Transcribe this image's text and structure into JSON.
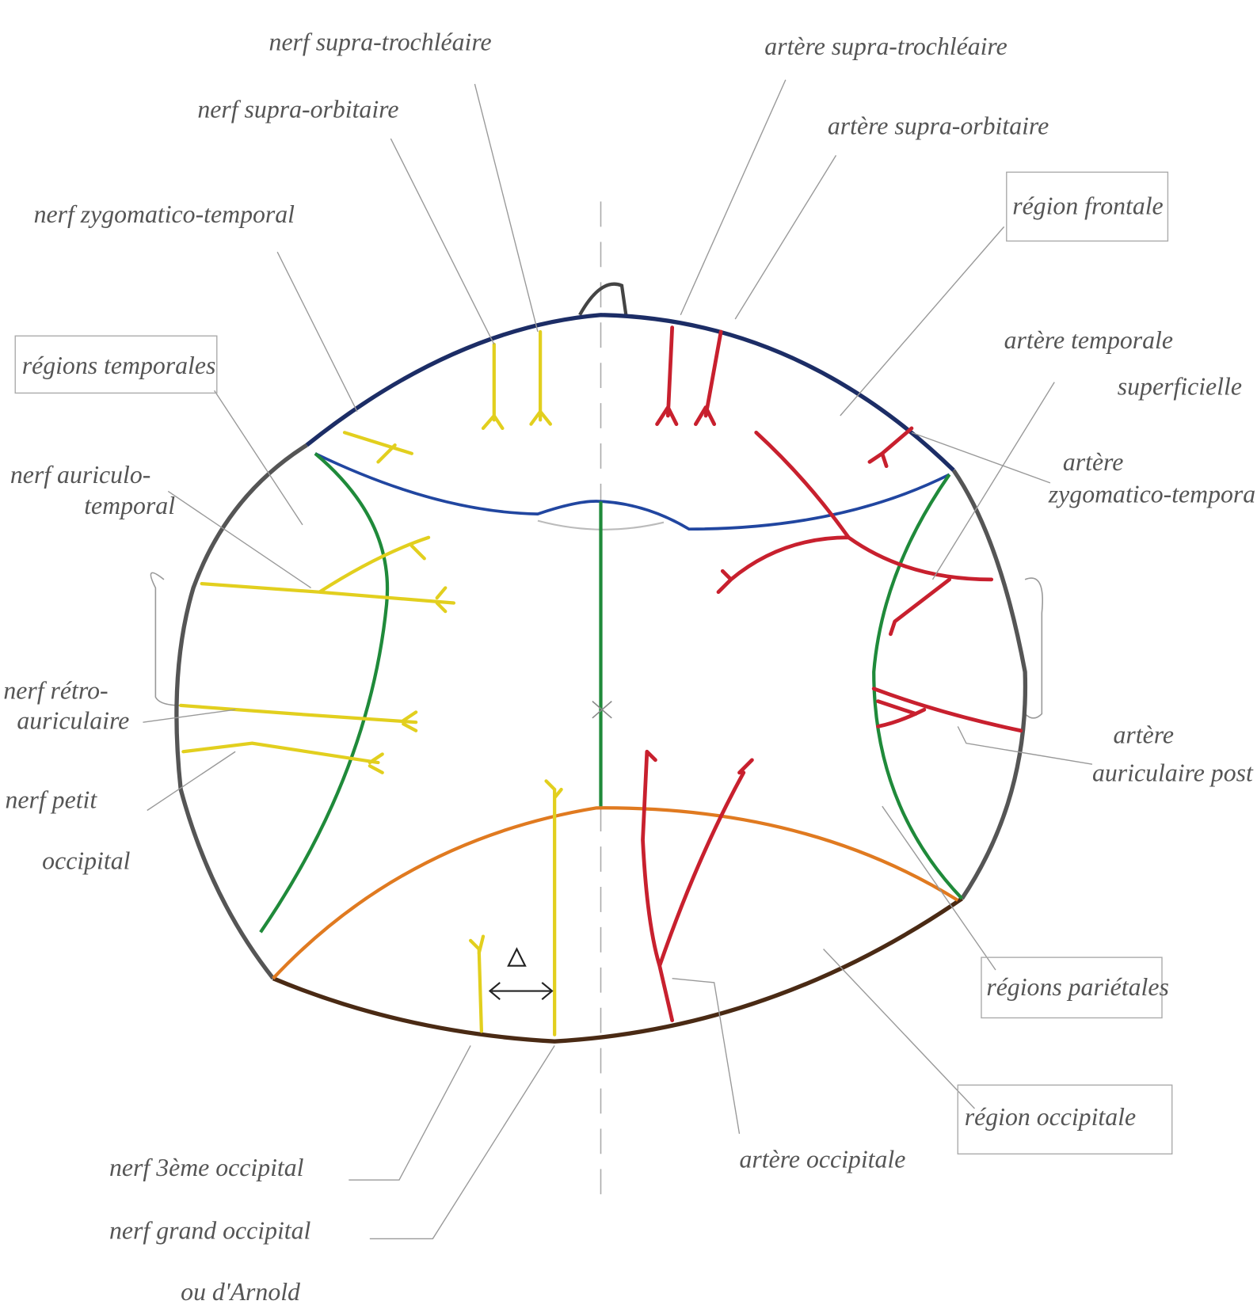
{
  "labels": {
    "nerf_supra_trochleaire": {
      "lines": [
        "nerf supra-trochléaire"
      ]
    },
    "nerf_supra_orbitaire": {
      "lines": [
        "nerf supra-orbitaire"
      ]
    },
    "nerf_zygomatico_temporal": {
      "lines": [
        "nerf zygomatico-temporal"
      ]
    },
    "regions_temporales": {
      "lines": [
        "régions temporales"
      ]
    },
    "nerf_auriculo_temporal": {
      "lines": [
        "nerf auriculo-",
        "temporal"
      ]
    },
    "nerf_retro_auriculaire": {
      "lines": [
        "nerf rétro-",
        "auriculaire"
      ]
    },
    "nerf_petit_occipital": {
      "lines": [
        "nerf petit",
        "occipital"
      ]
    },
    "artere_supra_trochleaire": {
      "lines": [
        "artère supra-trochléaire"
      ]
    },
    "artere_supra_orbitaire": {
      "lines": [
        "artère supra-orbitaire"
      ]
    },
    "region_frontale": {
      "lines": [
        "région frontale"
      ]
    },
    "artere_temporale_superficielle": {
      "lines": [
        "artère temporale",
        "superficielle"
      ]
    },
    "artere_zygomatico_temporale": {
      "lines": [
        "artère",
        "zygomatico-temporale"
      ]
    },
    "artere_auriculaire_post": {
      "lines": [
        "artère",
        "auriculaire post"
      ]
    },
    "regions_parietales": {
      "lines": [
        "régions pariétales"
      ]
    },
    "region_occipitale": {
      "lines": [
        "région occipitale"
      ]
    },
    "artere_occipitale": {
      "lines": [
        "artère occipitale"
      ]
    },
    "nerf_3eme_occipital": {
      "lines": [
        "nerf 3ème occipital"
      ]
    },
    "nerf_grand_occipital": {
      "lines": [
        "nerf grand occipital",
        "ou d'Arnold"
      ]
    }
  }
}
